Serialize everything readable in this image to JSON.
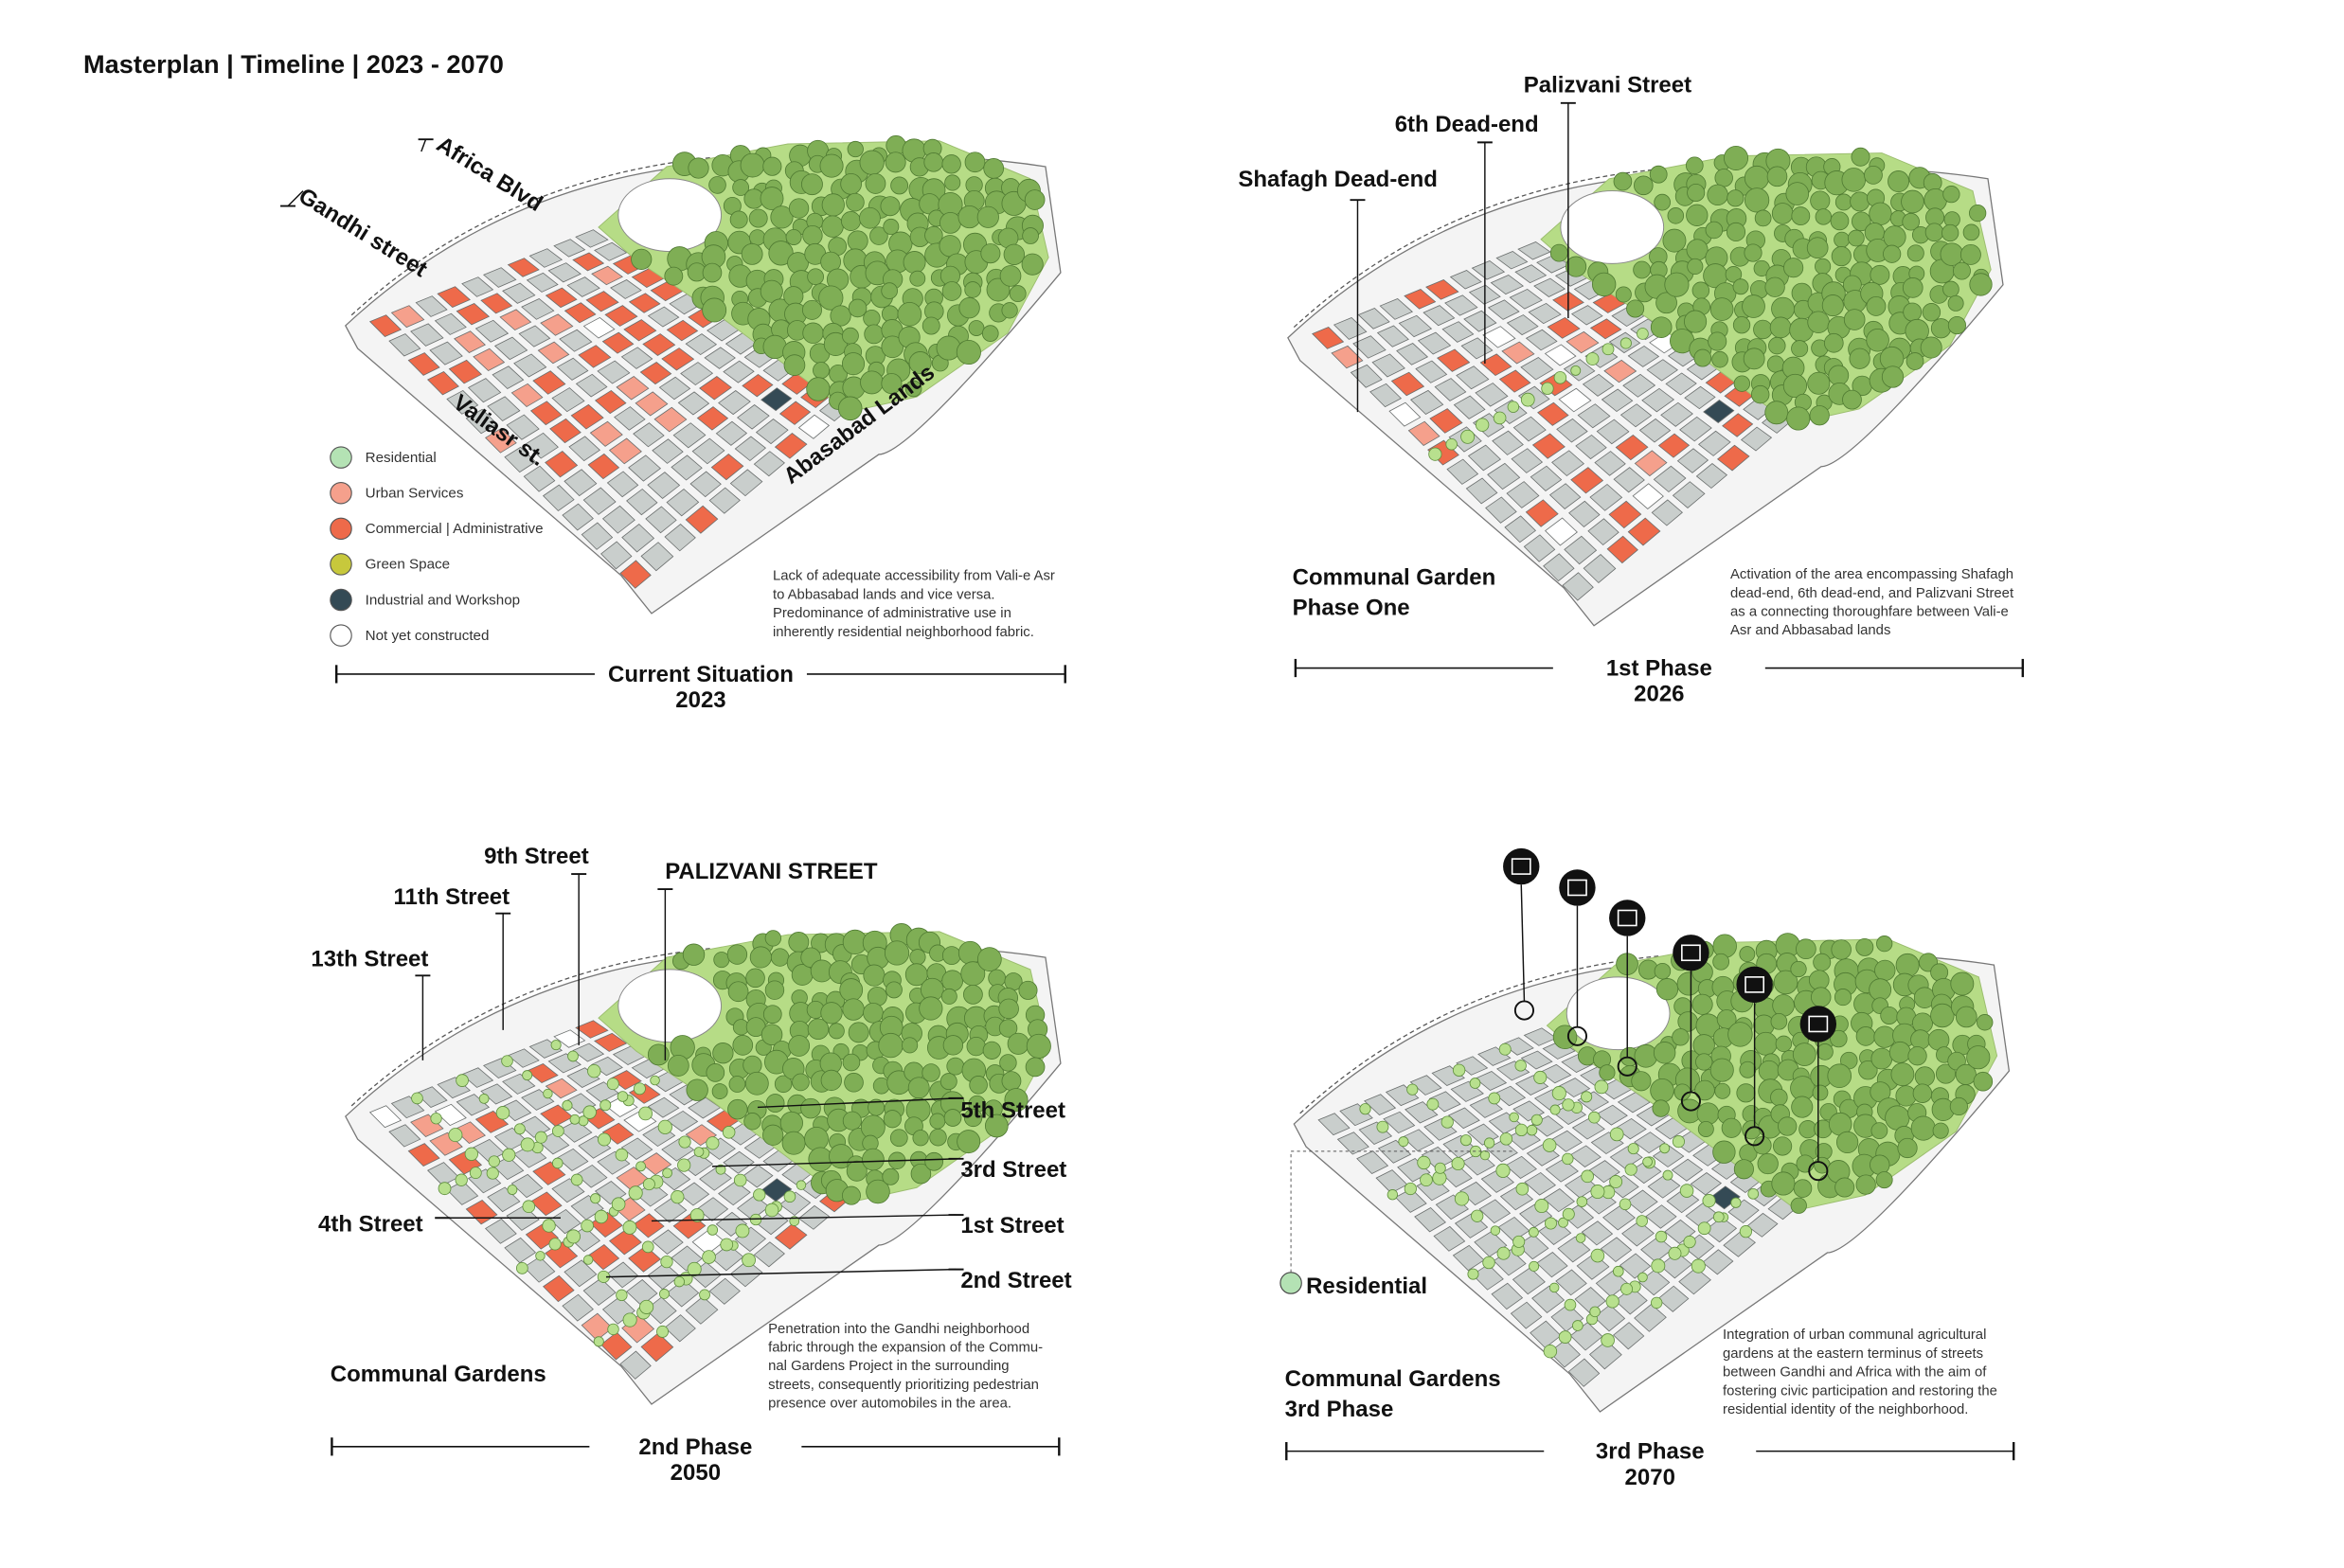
{
  "title": "Masterplan | Timeline | 2023 - 2070",
  "legend": [
    {
      "label": "Residential"
    },
    {
      "label": "Urban Services"
    },
    {
      "label": "Commercial | Administrative"
    },
    {
      "label": "Green Space"
    },
    {
      "label": "Industrial and Workshop"
    },
    {
      "label": "Not yet constructed"
    }
  ],
  "panels": [
    {
      "streets": [
        "Africa Blvd",
        "Gandhi street",
        "Valiasr st.",
        "Abasabad Lands"
      ],
      "caption": [
        "Lack of adequate accessibility from Vali-e Asr",
        "to Abbasabad lands and vice versa.",
        "Predominance of administrative use in",
        "inherently residential neighborhood fabric."
      ],
      "phase": "Current Situation",
      "year": "2023"
    },
    {
      "streets": [
        "Palizvani Street",
        "6th Dead-end",
        "Shafagh Dead-end"
      ],
      "subtitle": [
        "Communal Garden",
        "Phase One"
      ],
      "caption": [
        "Activation of the area encompassing Shafagh",
        "dead-end, 6th dead-end, and Palizvani Street",
        "as a connecting thoroughfare between Vali-e",
        "Asr and Abbasabad lands"
      ],
      "phase": "1st Phase",
      "year": "2026"
    },
    {
      "streets": [
        "9th Street",
        "11th Street",
        "13th Street",
        "PALIZVANI STREET",
        "5th Street",
        "3rd Street",
        "1st Street",
        "2nd Street",
        "4th Street"
      ],
      "subtitle": [
        "Communal Gardens"
      ],
      "caption": [
        "Penetration into the Gandhi neighborhood",
        "fabric through the expansion of the Commu-",
        "nal Gardens Project in the surrounding",
        "streets, consequently prioritizing pedestrian",
        "presence over automobiles in the area."
      ],
      "phase": "2nd Phase",
      "year": "2050"
    },
    {
      "streets": [
        "Residential"
      ],
      "subtitle": [
        "Communal Gardens",
        "3rd Phase"
      ],
      "caption": [
        "Integration of urban communal agricultural",
        "gardens at the eastern terminus of streets",
        "between Gandhi and Africa with the aim of",
        "fostering civic participation and restoring the",
        "residential identity of the neighborhood."
      ],
      "phase": "3rd Phase",
      "year": "2070"
    }
  ]
}
